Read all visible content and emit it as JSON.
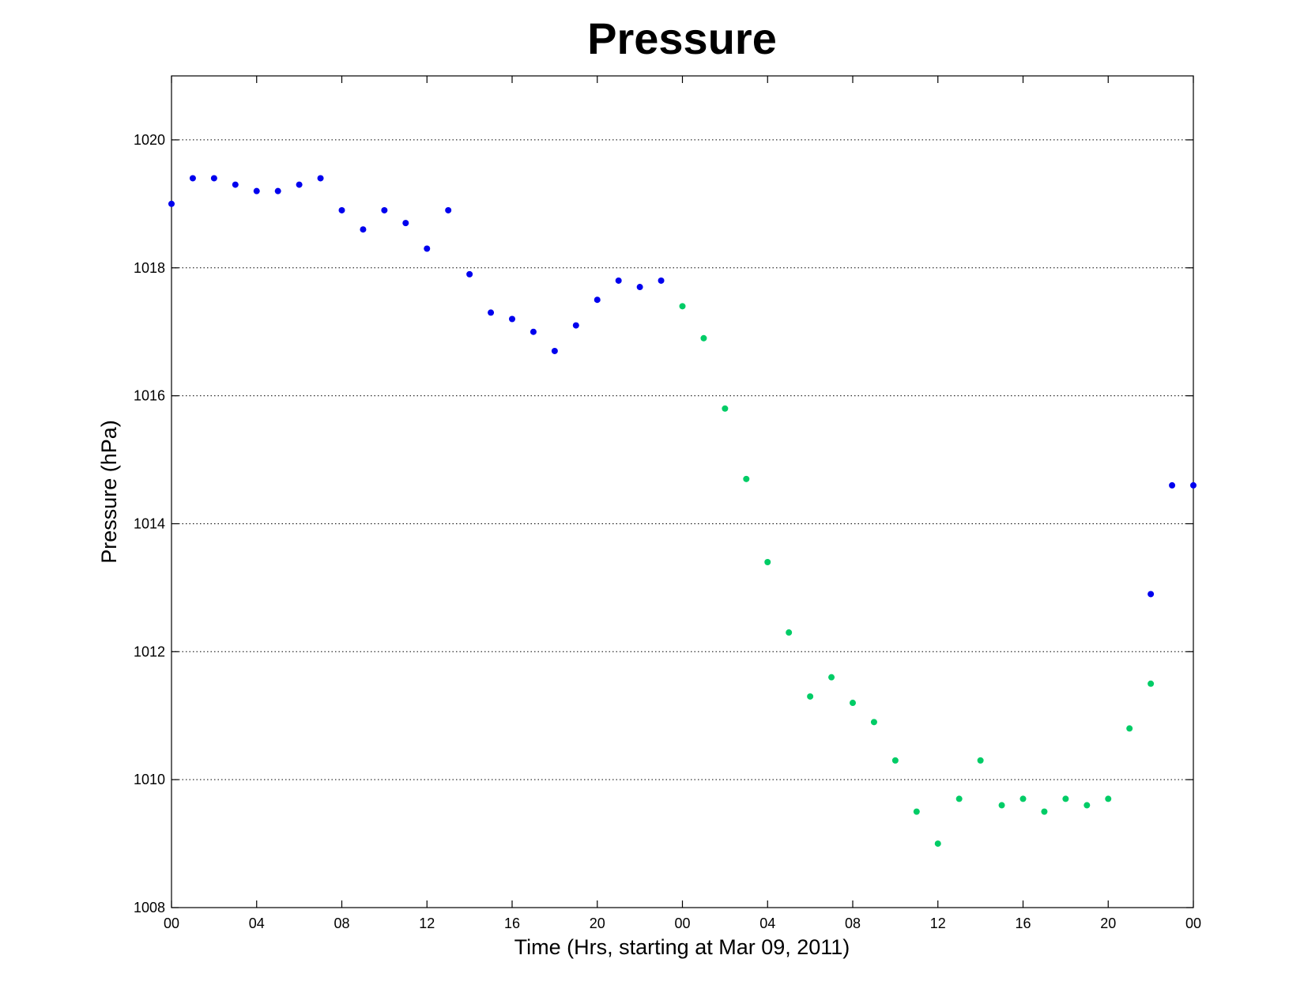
{
  "chart_data": {
    "type": "scatter",
    "title": "Pressure",
    "xlabel": "Time (Hrs, starting at Mar 09, 2011)",
    "ylabel": "Pressure (hPa)",
    "xlim": [
      0,
      48
    ],
    "ylim": [
      1008,
      1021
    ],
    "x_ticks": [
      {
        "x": 0,
        "label": "00"
      },
      {
        "x": 4,
        "label": "04"
      },
      {
        "x": 8,
        "label": "08"
      },
      {
        "x": 12,
        "label": "12"
      },
      {
        "x": 16,
        "label": "16"
      },
      {
        "x": 20,
        "label": "20"
      },
      {
        "x": 24,
        "label": "00"
      },
      {
        "x": 28,
        "label": "04"
      },
      {
        "x": 32,
        "label": "08"
      },
      {
        "x": 36,
        "label": "12"
      },
      {
        "x": 40,
        "label": "16"
      },
      {
        "x": 44,
        "label": "20"
      },
      {
        "x": 48,
        "label": "00"
      }
    ],
    "y_ticks": [
      1008,
      1010,
      1012,
      1014,
      1016,
      1018,
      1020
    ],
    "grid": "horizontal",
    "series": [
      {
        "color": "#0000ee",
        "x": [
          0,
          1,
          2,
          3,
          4,
          5,
          6,
          7,
          8,
          9,
          10,
          11,
          12,
          13,
          14,
          15,
          16,
          17,
          18,
          19,
          20,
          21,
          22,
          23,
          46,
          47,
          48
        ],
        "y": [
          1019.0,
          1019.4,
          1019.4,
          1019.3,
          1019.2,
          1019.2,
          1019.3,
          1019.4,
          1018.9,
          1018.6,
          1018.9,
          1018.7,
          1018.3,
          1018.9,
          1017.9,
          1017.3,
          1017.2,
          1017.0,
          1016.7,
          1017.1,
          1017.5,
          1017.8,
          1017.7,
          1017.8,
          1012.9,
          1014.6,
          1014.6
        ]
      },
      {
        "color": "#00cc66",
        "x": [
          24,
          25,
          26,
          27,
          28,
          29,
          30,
          31,
          32,
          33,
          34,
          35,
          36,
          37,
          38,
          39,
          40,
          41,
          42,
          43,
          44,
          45,
          46
        ],
        "y": [
          1017.4,
          1016.9,
          1015.8,
          1014.7,
          1013.4,
          1012.3,
          1011.3,
          1011.6,
          1011.2,
          1010.9,
          1010.3,
          1009.5,
          1009.0,
          1009.7,
          1010.3,
          1009.6,
          1009.7,
          1009.5,
          1009.7,
          1009.6,
          1009.7,
          1010.8,
          1011.5
        ]
      }
    ]
  }
}
